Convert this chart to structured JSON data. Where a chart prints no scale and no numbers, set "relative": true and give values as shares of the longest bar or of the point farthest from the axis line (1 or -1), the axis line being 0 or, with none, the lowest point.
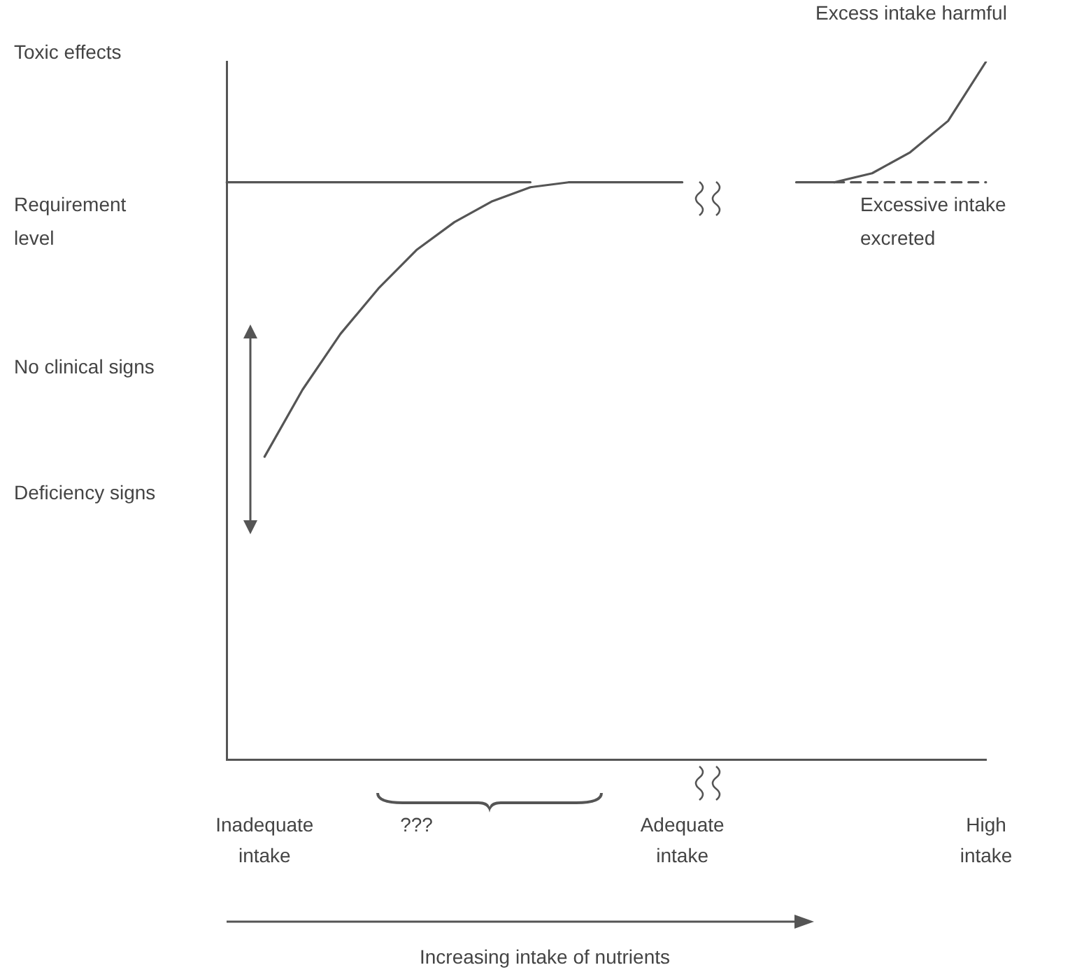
{
  "chart_data": {
    "type": "line",
    "relative": true,
    "grid": false,
    "legend": false,
    "marker": "none",
    "categories": [
      null,
      "Inadequate intake",
      null,
      null,
      null,
      "???",
      null,
      null,
      null,
      null,
      null,
      null,
      "Adequate intake",
      null,
      null,
      null,
      null,
      null,
      null,
      null,
      "High intake"
    ],
    "series": [
      {
        "color": "#555555",
        "line_style": "solid",
        "values": [
          null,
          0.434,
          0.53,
          0.61,
          0.675,
          0.73,
          0.77,
          0.8,
          0.82,
          0.827,
          0.827,
          0.827,
          0.827,
          null,
          null,
          0.827,
          0.827,
          0.84,
          0.87,
          0.915,
          1
        ]
      },
      {
        "color": "#555555",
        "line_style": "solid",
        "values": [
          0.827,
          0.827,
          0.827,
          0.827,
          0.827,
          0.827,
          0.827,
          0.827,
          0.827,
          null,
          null,
          null,
          null,
          null,
          null,
          null,
          null,
          null,
          null,
          null,
          null
        ]
      },
      {
        "color": "#555555",
        "line_style": "dashed",
        "values": [
          null,
          null,
          null,
          null,
          null,
          null,
          null,
          null,
          null,
          null,
          null,
          null,
          null,
          null,
          null,
          null,
          0.827,
          0.827,
          0.827,
          0.827,
          0.827
        ]
      }
    ],
    "annotations": [
      "Toxic effects",
      "Requirement level",
      "No clinical signs",
      "Deficiency signs",
      "Excess intake harmful",
      "Excessive intake excreted",
      "Increasing intake of nutrients"
    ]
  }
}
